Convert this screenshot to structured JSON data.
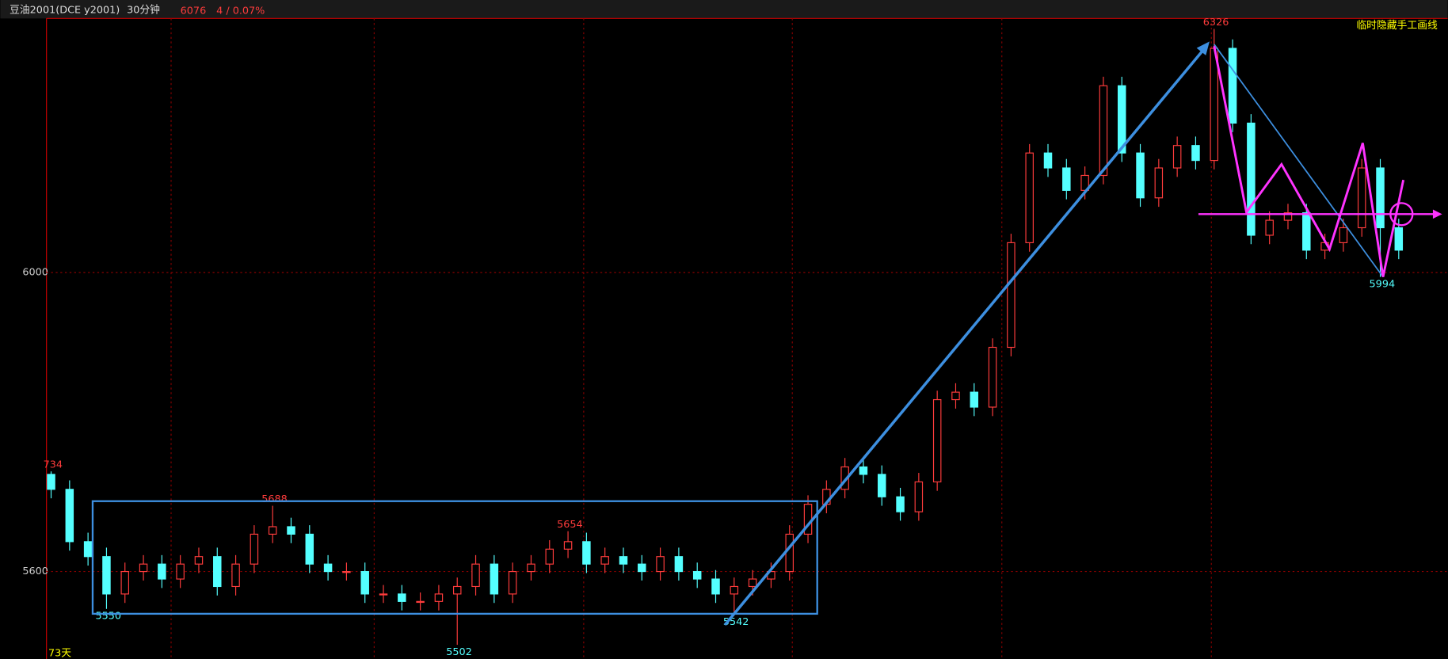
{
  "header": {
    "symbol": "豆油2001(DCE y2001)",
    "period": "30分钟",
    "price": "6076",
    "change": "4 / 0.07%",
    "toggle": "临时隐藏手工画线"
  },
  "chart_data": {
    "type": "candlestick",
    "ylim": [
      5483,
      6340
    ],
    "yticks": [
      5600,
      6000
    ],
    "grid": true,
    "up_color": "#ff3c3c",
    "down_color": "#54ffff",
    "open": [
      5730,
      5710,
      5640,
      5620,
      5570,
      5600,
      5610,
      5590,
      5610,
      5620,
      5580,
      5610,
      5650,
      5660,
      5650,
      5610,
      5600,
      5600,
      5570,
      5570,
      5560,
      5560,
      5570,
      5580,
      5610,
      5570,
      5600,
      5610,
      5630,
      5640,
      5610,
      5620,
      5610,
      5600,
      5620,
      5600,
      5590,
      5570,
      5580,
      5590,
      5600,
      5650,
      5690,
      5710,
      5740,
      5730,
      5700,
      5680,
      5720,
      5830,
      5840,
      5820,
      5900,
      6040,
      6160,
      6140,
      6110,
      6130,
      6250,
      6160,
      6100,
      6140,
      6170,
      6150,
      6300,
      6200,
      6050,
      6070,
      6080,
      6030,
      6040,
      6060,
      6140,
      6060
    ],
    "high": [
      5734,
      5722,
      5652,
      5632,
      5612,
      5622,
      5622,
      5622,
      5632,
      5632,
      5622,
      5662,
      5688,
      5672,
      5662,
      5622,
      5612,
      5612,
      5582,
      5582,
      5572,
      5582,
      5592,
      5622,
      5622,
      5612,
      5622,
      5642,
      5654,
      5652,
      5632,
      5632,
      5622,
      5632,
      5632,
      5612,
      5602,
      5592,
      5602,
      5612,
      5662,
      5702,
      5722,
      5752,
      5752,
      5742,
      5712,
      5732,
      5842,
      5852,
      5852,
      5912,
      6052,
      6172,
      6172,
      6152,
      6142,
      6262,
      6262,
      6172,
      6152,
      6182,
      6182,
      6326,
      6312,
      6212,
      6082,
      6092,
      6092,
      6052,
      6072,
      6152,
      6152,
      6072
    ],
    "low": [
      5698,
      5628,
      5608,
      5550,
      5558,
      5588,
      5578,
      5578,
      5598,
      5568,
      5568,
      5598,
      5638,
      5638,
      5598,
      5588,
      5588,
      5558,
      5558,
      5548,
      5548,
      5548,
      5502,
      5568,
      5558,
      5558,
      5588,
      5598,
      5618,
      5598,
      5598,
      5598,
      5588,
      5588,
      5588,
      5578,
      5558,
      5542,
      5568,
      5578,
      5588,
      5638,
      5678,
      5698,
      5718,
      5688,
      5668,
      5668,
      5708,
      5818,
      5808,
      5808,
      5888,
      6028,
      6128,
      6098,
      6098,
      6118,
      6148,
      6088,
      6088,
      6128,
      6138,
      6138,
      6188,
      6038,
      6038,
      6058,
      6018,
      6018,
      6028,
      6048,
      5994,
      6018
    ],
    "close": [
      5710,
      5640,
      5620,
      5570,
      5600,
      5610,
      5590,
      5610,
      5620,
      5580,
      5610,
      5650,
      5660,
      5650,
      5610,
      5600,
      5600,
      5570,
      5570,
      5560,
      5560,
      5570,
      5580,
      5610,
      5570,
      5600,
      5610,
      5630,
      5640,
      5610,
      5620,
      5610,
      5600,
      5620,
      5600,
      5590,
      5570,
      5580,
      5590,
      5600,
      5650,
      5690,
      5710,
      5740,
      5730,
      5700,
      5680,
      5720,
      5830,
      5840,
      5820,
      5900,
      6040,
      6160,
      6140,
      6110,
      6130,
      6250,
      6160,
      6100,
      6140,
      6170,
      6150,
      6300,
      6200,
      6050,
      6070,
      6080,
      6030,
      6040,
      6060,
      6140,
      6060,
      6030
    ],
    "annotations": [
      {
        "value": 5734,
        "label": "734"
      },
      5688,
      5654,
      6326,
      5550,
      5502,
      5542,
      5994
    ],
    "footer": "73天"
  }
}
